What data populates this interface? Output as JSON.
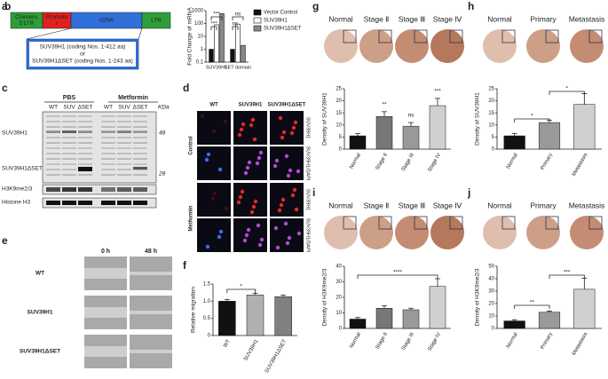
{
  "panels": {
    "a": {
      "label": "a",
      "blocks": [
        [
          "Chimeric",
          "5'LTR"
        ],
        [
          "Promote",
          "r"
        ],
        [
          "cDNA"
        ],
        [
          "LTR"
        ]
      ],
      "construct": [
        "SUV39H1 (coding Nos. 1-412 aa)",
        "or",
        "SUV39H1ΔSET (coding Nos. 1-243 aa)"
      ]
    },
    "c": {
      "label": "c",
      "groups": [
        "PBS",
        "Metformin"
      ],
      "lanes": [
        "WT",
        "SUV",
        "ΔSET",
        "WT",
        "SUV",
        "ΔSET"
      ],
      "unit": "KDa",
      "markers": [
        "48",
        "28"
      ],
      "rows": [
        "SUV39H1",
        "SUV39H1ΔSET",
        "H3K9me2/3",
        "Histone H3"
      ]
    },
    "d": {
      "label": "d",
      "columns": [
        "WT",
        "SUV39H1",
        "SUV39H1ΔSET"
      ],
      "rows": [
        "Control",
        "Metformin"
      ],
      "stains": [
        "SUV39H1",
        "SUV39H1/DAPI",
        "SUV39H1",
        "SUV39H1/DAPI"
      ]
    },
    "e": {
      "label": "e",
      "times": [
        "0 h",
        "48 h"
      ],
      "rows": [
        "WT",
        "SUV39H1",
        "SUV39H1ΔSET"
      ]
    },
    "g": {
      "images": [
        "Normal",
        "Stage Ⅱ",
        "Stage Ⅲ",
        "Stage Ⅳ"
      ]
    },
    "h": {
      "images": [
        "Normal",
        "Primary",
        "Metastasis"
      ]
    },
    "i": {
      "images": [
        "Normal",
        "Stage Ⅱ",
        "Stage Ⅲ",
        "Stage Ⅳ"
      ]
    },
    "j": {
      "images": [
        "Normal",
        "Primary",
        "Metastasis"
      ]
    }
  },
  "chart_data": [
    {
      "type": "bar",
      "label": "b",
      "ylabel": "Fold Change of mRNA",
      "log": true,
      "categories": [
        "SUV39H1",
        "SET domain"
      ],
      "series": [
        {
          "name": "Vector Control",
          "color": "#111111",
          "values": [
            1,
            1
          ]
        },
        {
          "name": "SUV39H1",
          "color": "#ffffff",
          "values": [
            80,
            90
          ]
        },
        {
          "name": "SUV39H1ΔSET",
          "color": "#888888",
          "values": [
            600,
            2
          ]
        }
      ],
      "ylim": [
        0.1,
        1000
      ],
      "yticks": [
        0.1,
        1,
        10,
        100,
        1000
      ],
      "annotations": [
        "***",
        "***",
        "ns",
        "ns"
      ]
    },
    {
      "type": "bar",
      "label": "f",
      "ylabel": "Relative migration",
      "categories": [
        "WT",
        "SUV39H1",
        "SUV39H1ΔSET"
      ],
      "values": [
        1.0,
        1.18,
        1.13
      ],
      "errors": [
        0.05,
        0.05,
        0.05
      ],
      "colors": [
        "#111111",
        "#b0b0b0",
        "#808080"
      ],
      "ylim": [
        0,
        1.5
      ],
      "yticks": [
        0,
        {
          "value": 0.5,
          "label": "0.5"
        },
        {
          "value": 1,
          "label": "1.0"
        },
        {
          "value": 1.5,
          "label": "1.5"
        }
      ],
      "annotations": [
        "*"
      ]
    },
    {
      "type": "bar",
      "label": "g",
      "ylabel": "Density of SUV39H1",
      "categories": [
        "Normal",
        "Stage II",
        "Stage III",
        "Stage IV"
      ],
      "values": [
        5.5,
        13.5,
        9.5,
        18
      ],
      "errors": [
        1,
        2,
        1.5,
        3
      ],
      "colors": [
        "#111111",
        "#777777",
        "#999999",
        "#d0d0d0"
      ],
      "ylim": [
        0,
        25
      ],
      "yticks": [
        0,
        5,
        10,
        15,
        20,
        25
      ],
      "annotations": [
        "**",
        "ns",
        "***"
      ]
    },
    {
      "type": "bar",
      "label": "h",
      "ylabel": "Density of SUV39H1",
      "categories": [
        "Normal",
        "Primary",
        "Metastasis"
      ],
      "values": [
        5.5,
        11,
        18.5
      ],
      "errors": [
        1,
        1,
        4.5
      ],
      "colors": [
        "#111111",
        "#999999",
        "#d0d0d0"
      ],
      "ylim": [
        0,
        25
      ],
      "yticks": [
        0,
        5,
        10,
        15,
        20,
        25
      ],
      "annotations": [
        "*",
        "*"
      ]
    },
    {
      "type": "bar",
      "label": "i",
      "ylabel": "Density of H3K9me2/3",
      "categories": [
        "Normal",
        "Stage II",
        "Stage III",
        "Stage IV"
      ],
      "values": [
        6,
        13,
        12,
        27
      ],
      "errors": [
        1,
        1.5,
        1,
        5
      ],
      "colors": [
        "#111111",
        "#777777",
        "#999999",
        "#d0d0d0"
      ],
      "ylim": [
        0,
        40
      ],
      "yticks": [
        0,
        10,
        20,
        30,
        40
      ],
      "annotations": [
        "****"
      ]
    },
    {
      "type": "bar",
      "label": "j",
      "ylabel": "Density of H3K9me2/3",
      "categories": [
        "Normal",
        "Primary",
        "Metastasis"
      ],
      "values": [
        6,
        13,
        31.5
      ],
      "errors": [
        1,
        1,
        9
      ],
      "colors": [
        "#111111",
        "#999999",
        "#d0d0d0"
      ],
      "ylim": [
        0,
        50
      ],
      "yticks": [
        0,
        10,
        20,
        30,
        40,
        50
      ],
      "annotations": [
        "**",
        "***"
      ]
    }
  ]
}
